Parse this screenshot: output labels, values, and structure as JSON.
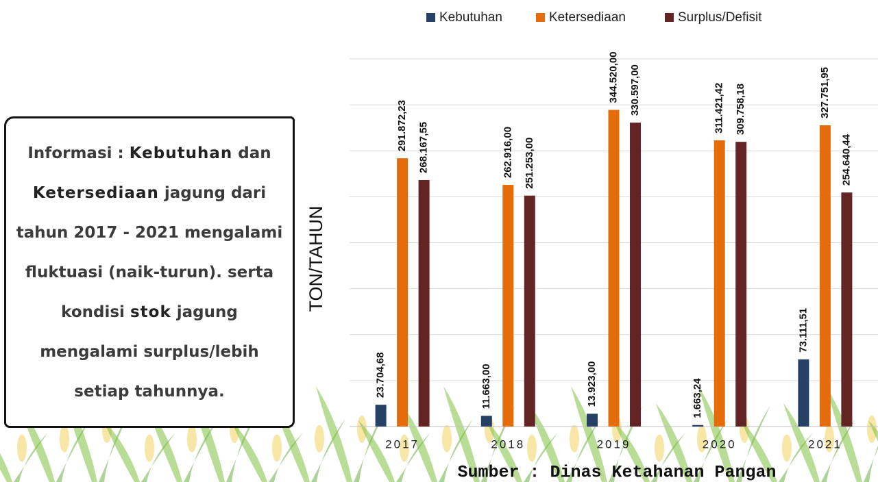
{
  "chart_data": {
    "type": "bar",
    "categories": [
      "2017",
      "2018",
      "2019",
      "2020",
      "2021"
    ],
    "series": [
      {
        "name": "Kebutuhan",
        "color": "#264066",
        "values": [
          23704.68,
          11663.0,
          13923.0,
          1663.24,
          73111.51
        ],
        "value_labels": [
          "23.704,68",
          "11.663,00",
          "13.923,00",
          "1.663,24",
          "73.111,51"
        ]
      },
      {
        "name": "Ketersediaan",
        "color": "#e46c0a",
        "values": [
          291872.23,
          262916.0,
          344520.0,
          311421.42,
          327751.95
        ],
        "value_labels": [
          "291.872,23",
          "262.916,00",
          "344.520,00",
          "311.421,42",
          "327.751,95"
        ]
      },
      {
        "name": "Surplus/Defisit",
        "color": "#632523",
        "values": [
          268167.55,
          251253.0,
          330597.0,
          309758.18,
          254640.44
        ],
        "value_labels": [
          "268.167,55",
          "251.253,00",
          "330.597,00",
          "309.758,18",
          "254.640,44"
        ]
      }
    ],
    "y_label": "TON/TAHUN",
    "ylim": [
      0,
      400000
    ],
    "ygrid": [
      50000,
      100000,
      150000,
      200000,
      250000,
      300000,
      350000,
      400000
    ],
    "grid": true,
    "legend": "top",
    "source": "Sumber : Dinas Ketahanan Pangan"
  },
  "info_box": {
    "segments": [
      {
        "text": "Informasi : ",
        "bold": false
      },
      {
        "text": "Kebutuhan",
        "bold": true
      },
      {
        "text": " dan ",
        "bold": false
      },
      {
        "text": "Ketersediaan",
        "bold": true
      },
      {
        "text": " jagung dari tahun 2017 - 2021 mengalami fluktuasi (naik-turun). serta kondisi ",
        "bold": false
      },
      {
        "text": "stok",
        "bold": true
      },
      {
        "text": " jagung mengalami surplus/lebih setiap tahunnya.",
        "bold": false
      }
    ]
  }
}
